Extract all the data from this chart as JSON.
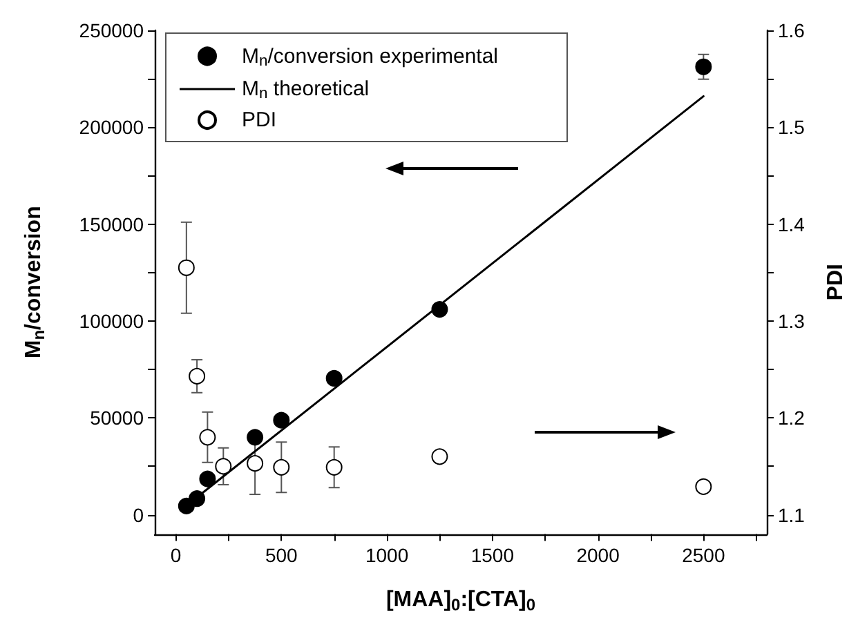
{
  "chart_data": {
    "type": "scatter",
    "xlabel": "[MAA]$_{0}$:[CTA]$_{0}$",
    "ylabel": "M$_{n}$/conversion",
    "y2label": "PDI",
    "xlim": [
      -100,
      2800
    ],
    "xticks": [
      0,
      {
        "value": 250,
        "label": null
      },
      500,
      {
        "value": 750,
        "label": null
      },
      1000,
      {
        "value": 1250,
        "label": null
      },
      1500,
      {
        "value": 1750,
        "label": null
      },
      2000,
      {
        "value": 2250,
        "label": null
      },
      2500,
      {
        "value": 2750,
        "label": null
      }
    ],
    "ylim": [
      -10000,
      250000
    ],
    "yticks": [
      0,
      {
        "value": 25000,
        "label": null
      },
      50000,
      {
        "value": 75000,
        "label": null
      },
      100000,
      {
        "value": 125000,
        "label": null
      },
      150000,
      {
        "value": 175000,
        "label": null
      },
      200000,
      {
        "value": 225000,
        "label": null
      },
      250000
    ],
    "y2lim": [
      1.08,
      1.6
    ],
    "y2ticks": [
      1.1,
      {
        "value": 1.15,
        "label": null
      },
      1.2,
      {
        "value": 1.25,
        "label": null
      },
      1.3,
      {
        "value": 1.35,
        "label": null
      },
      1.4,
      {
        "value": 1.45,
        "label": null
      },
      1.5,
      {
        "value": 1.55,
        "label": null
      },
      1.6
    ],
    "legend": "top left",
    "grid": false,
    "series": [
      {
        "name": "M$_{n}$/conversion experimental",
        "marker": "circle",
        "color": "#000000",
        "x": [
          50,
          100,
          150,
          375,
          500,
          750,
          1250,
          2500
        ],
        "values": [
          4500,
          8300,
          18500,
          40000,
          48800,
          70400,
          106000,
          231200
        ],
        "errors": [
          null,
          null,
          null,
          null,
          null,
          null,
          3000,
          6400
        ]
      },
      {
        "name": "M$_{n}$ theoretical",
        "type": "line",
        "marker": "none",
        "line_style": "solid",
        "color": "#000000",
        "x": [
          100,
          2500
        ],
        "values": [
          9000,
          216000
        ]
      },
      {
        "name": "PDI",
        "axis": "y2",
        "marker": "circle",
        "color": "#ffffff",
        "x": [
          50,
          100,
          150,
          225,
          375,
          500,
          750,
          1250,
          2500
        ],
        "values": [
          1.355,
          1.243,
          1.18,
          1.15,
          1.153,
          1.149,
          1.149,
          1.16,
          1.129
        ],
        "errors": [
          0.047,
          0.017,
          0.026,
          0.019,
          0.032,
          0.026,
          0.021,
          null,
          0.004
        ]
      }
    ]
  }
}
